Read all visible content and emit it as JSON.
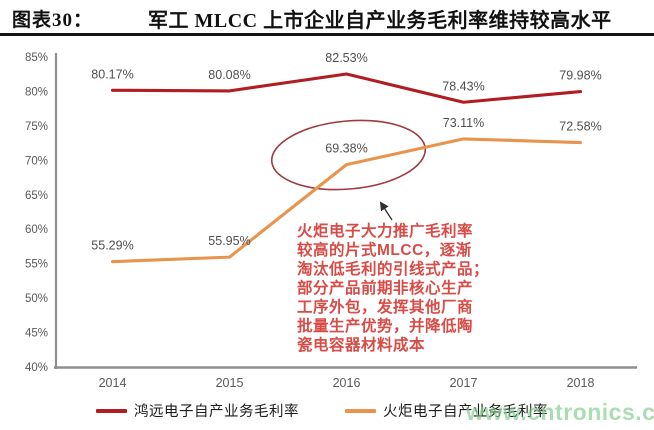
{
  "header": {
    "figure_label": "图表30：",
    "title": "军工 MLCC 上市企业自产业务毛利率维持较高水平"
  },
  "chart_data": {
    "type": "line",
    "categories": [
      "2014",
      "2015",
      "2016",
      "2017",
      "2018"
    ],
    "series": [
      {
        "name": "鸿远电子自产业务毛利率",
        "color": "#b01e23",
        "values": [
          80.17,
          80.08,
          82.53,
          78.43,
          79.98
        ],
        "point_labels": [
          "80.17%",
          "80.08%",
          "82.53%",
          "78.43%",
          "79.98%"
        ]
      },
      {
        "name": "火炬电子自产业务毛利率",
        "color": "#e8944d",
        "values": [
          55.29,
          55.95,
          69.38,
          73.11,
          72.58
        ],
        "point_labels": [
          "55.29%",
          "55.95%",
          "69.38%",
          "73.11%",
          "72.58%"
        ]
      }
    ],
    "ylim": [
      40,
      85
    ],
    "ytick_step": 5,
    "ytick_suffix": "%",
    "grid": false,
    "legend_position": "bottom",
    "axis_color": "#8f8f8f",
    "tick_label_color": "#595959",
    "point_label_color": "#4f4f4f",
    "highlight": {
      "series": "火炬电子自产业务毛利率",
      "category": "2016",
      "label": "69.38%",
      "ellipse_color": "#9e3a40"
    }
  },
  "annotation": {
    "color": "#d94b47",
    "text": "火炬电子大力推广毛利率\n较高的片式MLCC，逐渐\n淘汰低毛利的引线式产品；\n部分产品前期非核心生产\n工序外包，发挥其他厂商\n批量生产优势，并降低陶\n瓷电容器材料成本"
  },
  "watermark": {
    "text": "www.cntronics.com",
    "color": "#7ecb8a"
  }
}
